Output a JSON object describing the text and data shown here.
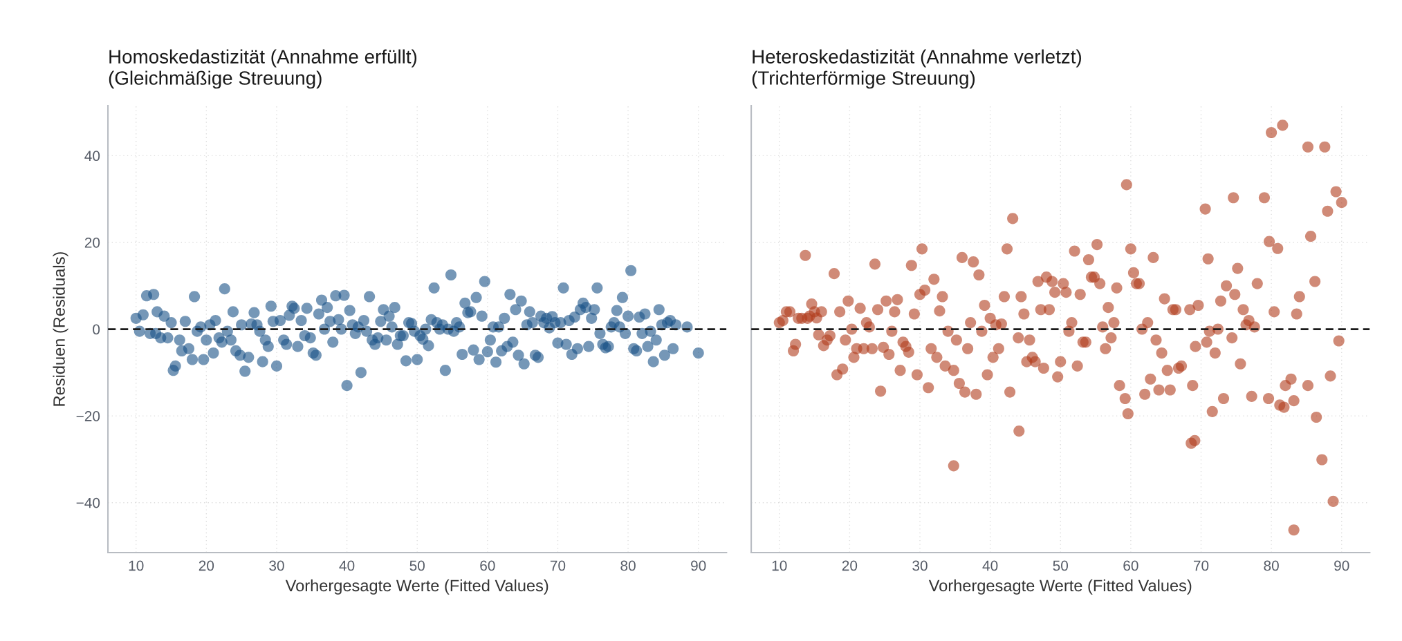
{
  "chart_data": [
    {
      "type": "scatter",
      "title": "Homoskedastizität (Annahme erfüllt)\n(Gleichmäßige Streuung)",
      "xlabel": "Vorhergesagte Werte (Fitted Values)",
      "ylabel": "Residuen (Residuals)",
      "xlim": [
        6,
        94
      ],
      "xticks": [
        10,
        20,
        30,
        40,
        50,
        60,
        70,
        80,
        90
      ],
      "ylim": [
        -51.5,
        51.5
      ],
      "yticks": [
        -40,
        -20,
        0,
        20,
        40
      ],
      "grid": true,
      "marker": "circle",
      "ref_lines": [
        {
          "axis": "y",
          "value": 0,
          "color": "#1a1a1a",
          "line_style": "dashed"
        }
      ],
      "series": [
        {
          "color": "#195287",
          "x": [
            10,
            10.5,
            11,
            11.5,
            12,
            12.5,
            12.8,
            13,
            13.5,
            14,
            14.5,
            15,
            15.3,
            15.6,
            16.2,
            16.5,
            17,
            17.5,
            18,
            18.3,
            18.7,
            19.2,
            19.6,
            20,
            20.5,
            21,
            21.3,
            21.8,
            22.2,
            22.6,
            23,
            23.5,
            23.8,
            24.2,
            24.8,
            25,
            25.5,
            26,
            26.4,
            26.8,
            27.2,
            27.6,
            28,
            28.4,
            28.8,
            29.2,
            29.5,
            30,
            30.5,
            31,
            31.4,
            31.8,
            32.2,
            32.5,
            33,
            33.5,
            34,
            34.3,
            34.8,
            35.2,
            35.6,
            36,
            36.4,
            36.8,
            37.2,
            37.6,
            38,
            38.4,
            38.8,
            39.2,
            39.6,
            40,
            40.4,
            40.8,
            41.2,
            41.6,
            42,
            42.4,
            42.8,
            43.2,
            43.6,
            44,
            44.4,
            44.8,
            45.2,
            45.6,
            46,
            46.4,
            46.8,
            47.2,
            47.6,
            48,
            48.4,
            48.8,
            49.2,
            49.6,
            50,
            50.4,
            50.8,
            51.2,
            51.6,
            52,
            52.4,
            52.8,
            53.2,
            53.6,
            54,
            54.4,
            54.8,
            55.2,
            55.6,
            56,
            56.4,
            56.8,
            57.2,
            57.6,
            58,
            58.4,
            58.8,
            59.2,
            59.6,
            60,
            60.4,
            60.8,
            61.2,
            61.6,
            62,
            62.4,
            62.8,
            63.2,
            63.6,
            64,
            64.4,
            64.8,
            65.2,
            65.6,
            66,
            66.4,
            66.8,
            67.2,
            67.6,
            68,
            68.4,
            68.8,
            69.2,
            69.6,
            70,
            70.4,
            70.8,
            71.2,
            71.6,
            72,
            72.4,
            72.8,
            73.2,
            73.6,
            74,
            74.4,
            74.8,
            75.2,
            75.6,
            76,
            76.4,
            76.8,
            77.2,
            77.6,
            78,
            78.4,
            78.8,
            79.2,
            79.6,
            80,
            80.4,
            80.8,
            81.2,
            81.6,
            82,
            82.4,
            82.8,
            83.2,
            83.6,
            84,
            84.4,
            84.8,
            85.2,
            85.6,
            86,
            86.4,
            86.8,
            88.4,
            90
          ],
          "values": [
            2.5,
            -0.5,
            3.3,
            7.7,
            -1,
            8,
            -1,
            4,
            -2,
            3,
            -2,
            1.5,
            -9.5,
            -8.5,
            -2.5,
            -5,
            1.8,
            -4.5,
            -7,
            7.5,
            -0.5,
            0.5,
            -7,
            -2.5,
            1,
            -5.5,
            2,
            -2,
            -3,
            9.3,
            -0.5,
            -2.5,
            4,
            -5,
            -6,
            1,
            -9.7,
            -6.5,
            1.2,
            3.8,
            1,
            -0.5,
            -7.5,
            -2.5,
            -4,
            5.3,
            1.8,
            -8.5,
            2,
            -2.5,
            -3.5,
            3.2,
            5.3,
            4.8,
            -4,
            2,
            -1.5,
            4.8,
            -2,
            -5.5,
            -6,
            3.5,
            6.7,
            0,
            5,
            1.8,
            -3,
            7.7,
            2.2,
            0,
            7.8,
            -13,
            4.3,
            1,
            -1,
            0.5,
            -10,
            2,
            -0.5,
            7.5,
            -2.5,
            -3.5,
            -2,
            1.8,
            4.5,
            -2.5,
            3,
            0.5,
            5,
            -3.5,
            -1.5,
            -1.5,
            -7.3,
            1.5,
            1.3,
            -0.5,
            -7,
            -1.5,
            -2.3,
            0,
            -3.8,
            2.2,
            9.5,
            1.5,
            0,
            1,
            -9.5,
            0,
            12.5,
            -0.5,
            1.5,
            0.5,
            -5.8,
            6,
            3.8,
            4,
            -4.8,
            7.3,
            -7,
            3,
            11,
            -5.2,
            -2.5,
            0.5,
            -7.6,
            0.5,
            -5,
            2.5,
            -4,
            8,
            -3,
            4.5,
            -6,
            6.5,
            -8,
            1,
            4,
            1.5,
            -6,
            -6.5,
            3,
            1.5,
            2.5,
            0.3,
            2.9,
            1.5,
            -3.2,
            1.5,
            9.5,
            -3.5,
            2,
            -5.8,
            2.8,
            -4.5,
            4.5,
            6,
            5,
            -4,
            2.5,
            4.5,
            9.5,
            -1,
            -3.5,
            -4.3,
            -4,
            0.5,
            1.5,
            4.3,
            0.5,
            7.3,
            -1,
            3,
            13.5,
            -4.5,
            -5,
            2.8,
            -1,
            3.5,
            -4,
            -0.5,
            -7.5,
            -2.5,
            4.5,
            1,
            -6,
            1.5,
            2,
            -4.5,
            1,
            0.5,
            -5.5
          ]
        }
      ]
    },
    {
      "type": "scatter",
      "title": "Heteroskedastizität (Annahme verletzt)\n(Trichterförmige Streuung)",
      "xlabel": "Vorhergesagte Werte (Fitted Values)",
      "xlim": [
        6,
        94
      ],
      "xticks": [
        10,
        20,
        30,
        40,
        50,
        60,
        70,
        80,
        90
      ],
      "ylim": [
        -51.5,
        51.5
      ],
      "yticks": [
        -40,
        -20,
        0,
        20,
        40
      ],
      "tick_labels": "x",
      "grid": true,
      "marker": "circle",
      "ref_lines": [
        {
          "axis": "y",
          "value": 0,
          "color": "#1a1a1a",
          "line_style": "dashed"
        }
      ],
      "series": [
        {
          "color": "#b13c1c",
          "x": [
            10,
            10.5,
            11,
            11.5,
            12,
            12.3,
            12.7,
            13.2,
            13.7,
            14,
            14.3,
            14.6,
            15,
            15.3,
            15.6,
            16,
            16.3,
            16.8,
            17.2,
            17.8,
            18.2,
            18.6,
            19,
            19.4,
            19.8,
            20.3,
            20.6,
            21,
            21.5,
            22,
            22.4,
            22.8,
            23.2,
            23.6,
            24,
            24.4,
            24.8,
            25.2,
            25.6,
            26,
            26.4,
            26.8,
            27.2,
            27.6,
            28,
            28.4,
            28.8,
            29.2,
            29.6,
            30,
            30.3,
            30.7,
            31.2,
            31.6,
            32,
            32.4,
            32.8,
            33.2,
            33.6,
            34,
            34.8,
            34.8,
            35.2,
            35.6,
            36,
            36.4,
            36.8,
            37.2,
            37.6,
            38,
            38.4,
            38.8,
            39.2,
            39.6,
            40,
            40.4,
            40.8,
            41.2,
            41.6,
            42,
            42.4,
            42.8,
            43.2,
            44.1,
            44,
            44.4,
            44.8,
            45.2,
            45.6,
            46,
            46.4,
            46.8,
            47.2,
            47.6,
            48,
            48.4,
            48.8,
            49.2,
            49.6,
            50,
            50.4,
            50.8,
            51.2,
            51.6,
            52,
            52.4,
            52.8,
            53.2,
            53.6,
            54,
            54.4,
            54.8,
            55.2,
            55.6,
            56,
            56.4,
            56.8,
            57.2,
            57.6,
            58,
            58.4,
            59.4,
            59.2,
            59.6,
            60,
            60.4,
            60.8,
            61.2,
            61.6,
            62,
            62.4,
            62.8,
            63.2,
            63.6,
            64,
            64.4,
            64.8,
            65.2,
            65.6,
            66,
            66.4,
            66.8,
            67.2,
            68.6,
            69.1,
            68.4,
            68.8,
            69.2,
            69.6,
            70.6,
            71,
            70.8,
            71.2,
            71.6,
            72,
            72.4,
            72.8,
            73.2,
            73.6,
            74.6,
            74.4,
            74.8,
            75.2,
            75.6,
            76,
            76.4,
            76.8,
            77.2,
            77.6,
            78,
            79,
            79.7,
            80.4,
            79.6,
            80.9,
            80,
            81.6,
            81.2,
            81.8,
            82,
            83.2,
            82.8,
            83.2,
            83.6,
            84,
            85.2,
            85.6,
            85.2,
            86.4,
            86.2,
            87.6,
            87.2,
            88,
            88.4,
            88.8,
            89.2,
            89.6,
            90
          ],
          "values": [
            1.5,
            2,
            4,
            4,
            -5,
            -3.5,
            2.5,
            2.5,
            17,
            2.5,
            3,
            5.8,
            4,
            2.6,
            -1.3,
            4,
            -3.8,
            -2.5,
            -1.5,
            12.8,
            -10.5,
            4,
            -9.2,
            -2.5,
            6.5,
            0,
            -6.5,
            -4.5,
            4.8,
            -4.5,
            1.5,
            0.5,
            -4.5,
            15,
            4.5,
            -14.3,
            -4.2,
            6.5,
            -5.8,
            -0.5,
            4,
            6.8,
            -9.5,
            -3,
            -4,
            -5.3,
            14.7,
            3.5,
            -10.5,
            8,
            18.5,
            9,
            -13.5,
            -4.5,
            11.5,
            -6.5,
            4.2,
            7.5,
            -8.5,
            -0.5,
            -31.5,
            -9.5,
            -2.5,
            -12.5,
            16.5,
            -14.5,
            -4.5,
            1.5,
            15.5,
            -15,
            12.5,
            -0.5,
            5.5,
            -10.5,
            2.5,
            -6.5,
            1,
            -4.5,
            1.2,
            7.5,
            18.5,
            -14.5,
            25.5,
            -23.5,
            -2,
            7.5,
            3.5,
            -7.5,
            -2.5,
            -6.5,
            -7.5,
            11,
            4.5,
            -9,
            12,
            4.5,
            11,
            8.5,
            -11,
            -7.5,
            10.5,
            8.5,
            -0.5,
            1.5,
            18,
            -8.5,
            8,
            -3,
            -3,
            16,
            12,
            12,
            19.5,
            10.5,
            0.5,
            -4.5,
            5,
            -2,
            1.5,
            9.5,
            -13,
            33.3,
            -16,
            -19.5,
            18.5,
            13,
            10.5,
            10.5,
            0,
            -15,
            1.5,
            -11.5,
            16.5,
            -2.5,
            -14,
            -5.5,
            7,
            -9.5,
            -14,
            4.5,
            4.5,
            -9,
            -8.5,
            -26.3,
            -25.7,
            4.5,
            -13,
            -4,
            5.5,
            27.7,
            16.2,
            -3,
            -0.5,
            -19,
            -5.5,
            0,
            6.5,
            -16,
            10,
            30.3,
            -2,
            8,
            14,
            -8,
            4.5,
            1,
            2,
            -15.5,
            0.5,
            10.5,
            30.3,
            20.2,
            4,
            -16,
            18.6,
            45.3,
            47,
            -17.5,
            -18,
            -13,
            -46.3,
            -11.5,
            -16.5,
            3.5,
            7.5,
            42,
            21.4,
            -13,
            -20.3,
            11,
            42,
            -30.1,
            27.2,
            -10.8,
            -39.7,
            31.7,
            -2.7,
            29.2
          ]
        }
      ]
    }
  ]
}
